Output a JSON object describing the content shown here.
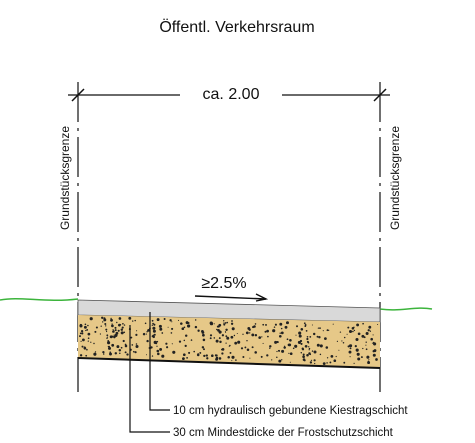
{
  "title": "Öffentl. Verkehrsraum",
  "dimension": "ca. 2.00",
  "boundary_labels": [
    "Grundstücksgrenze",
    "Grundstücksgrenze"
  ],
  "slope": "≥2.5%",
  "layers": [
    {
      "label": "10 cm hydraulisch gebundene Kiestragschicht"
    },
    {
      "label": "30 cm Mindestdicke der Frostschutzschicht"
    }
  ]
}
